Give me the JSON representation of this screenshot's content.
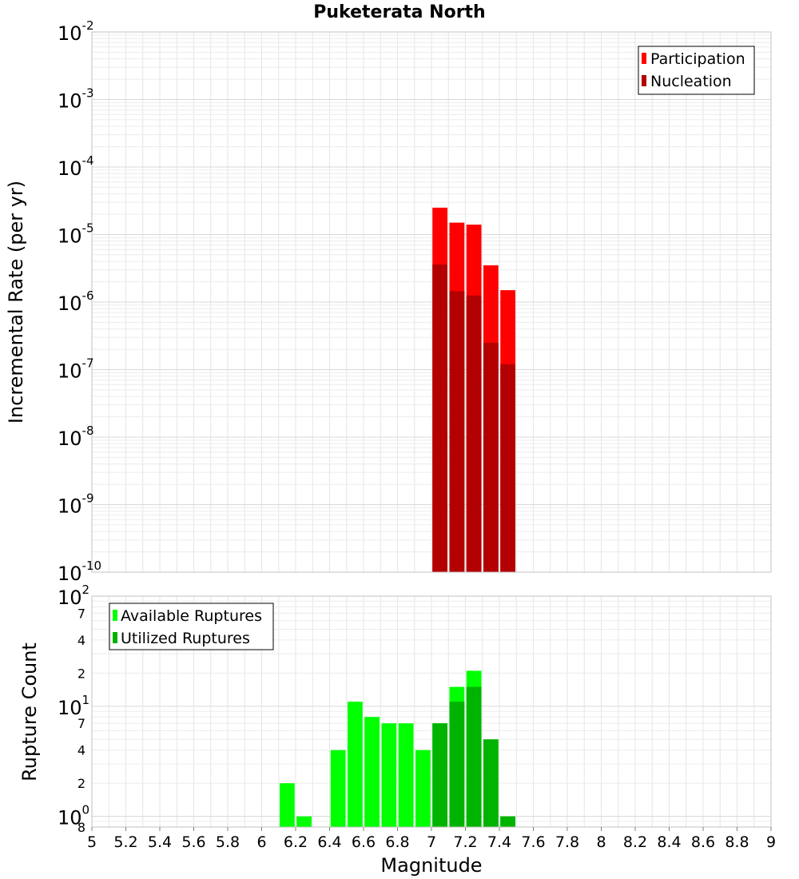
{
  "colors": {
    "participation": "#ff0000",
    "nucleation": "#b30000",
    "available": "#00ff00",
    "utilized": "#00b300",
    "grid": "#e6e6e6",
    "frame": "#c0c0c0"
  },
  "chart_data": [
    {
      "type": "bar",
      "title": "Puketerata North",
      "xlabel": "",
      "ylabel": "Incremental Rate (per yr)",
      "yscale": "log",
      "ylim": [
        1e-10,
        0.01
      ],
      "xlim": [
        5,
        9
      ],
      "grid": true,
      "legend_position": "top-right",
      "y_ticks": [
        {
          "base": "10",
          "exp": "-10"
        },
        {
          "base": "10",
          "exp": "-9"
        },
        {
          "base": "10",
          "exp": "-8"
        },
        {
          "base": "10",
          "exp": "-7"
        },
        {
          "base": "10",
          "exp": "-6"
        },
        {
          "base": "10",
          "exp": "-5"
        },
        {
          "base": "10",
          "exp": "-4"
        },
        {
          "base": "10",
          "exp": "-3"
        },
        {
          "base": "10",
          "exp": "-2"
        }
      ],
      "x": [
        7.05,
        7.15,
        7.25,
        7.35,
        7.45
      ],
      "series": [
        {
          "name": "Participation",
          "values": [
            2.5e-05,
            1.5e-05,
            1.4e-05,
            3.5e-06,
            1.5e-06
          ]
        },
        {
          "name": "Nucleation",
          "values": [
            3.6e-06,
            1.45e-06,
            1.25e-06,
            2.5e-07,
            1.2e-07
          ]
        }
      ]
    },
    {
      "type": "bar",
      "title": "",
      "xlabel": "Magnitude",
      "ylabel": "Rupture Count",
      "yscale": "log",
      "ylim": [
        0.8,
        100
      ],
      "xlim": [
        5,
        9
      ],
      "grid": true,
      "legend_position": "top-left",
      "x_tick_labels": [
        "5",
        "5.2",
        "5.4",
        "5.6",
        "5.8",
        "6",
        "6.2",
        "6.4",
        "6.6",
        "6.8",
        "7",
        "7.2",
        "7.4",
        "7.6",
        "7.8",
        "8",
        "8.2",
        "8.4",
        "8.6",
        "8.8",
        "9"
      ],
      "y_major_ticks": [
        {
          "base": "10",
          "exp": "0"
        },
        {
          "base": "10",
          "exp": "1"
        },
        {
          "base": "10",
          "exp": "2"
        }
      ],
      "y_minor_ticks": [
        "8",
        "2",
        "4",
        "7",
        "2",
        "4",
        "7"
      ],
      "x": [
        6.15,
        6.25,
        6.45,
        6.55,
        6.65,
        6.75,
        6.85,
        6.95,
        7.05,
        7.15,
        7.25,
        7.35,
        7.45
      ],
      "series": [
        {
          "name": "Available Ruptures",
          "values": [
            2,
            1,
            4,
            11,
            8,
            7,
            7,
            4,
            7,
            15,
            21,
            5,
            1
          ]
        },
        {
          "name": "Utilized Ruptures",
          "values": [
            0,
            0,
            0,
            0,
            0,
            0,
            0,
            0,
            7,
            11,
            15,
            5,
            1
          ]
        }
      ]
    }
  ]
}
